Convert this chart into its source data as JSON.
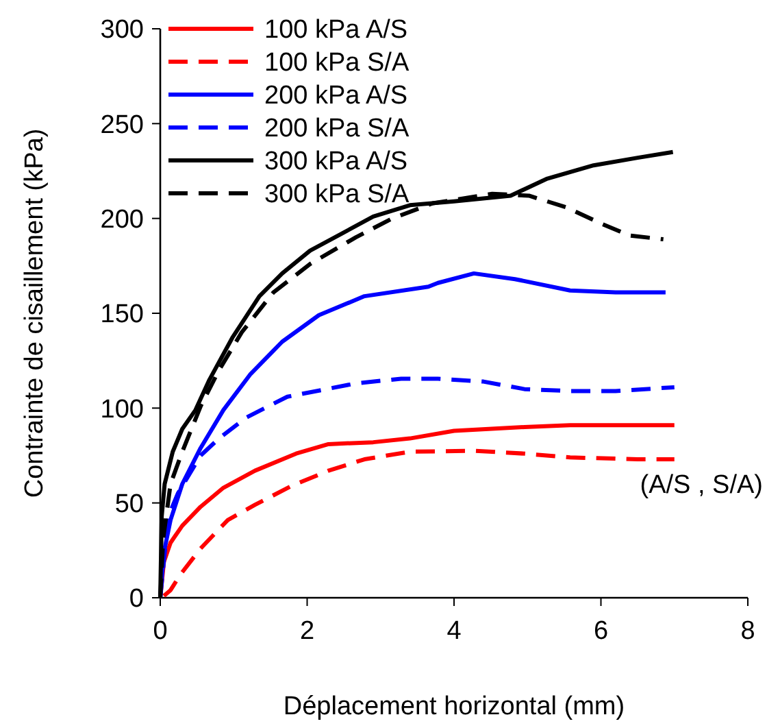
{
  "chart_data": {
    "type": "line",
    "xlabel": "Déplacement horizontal (mm)",
    "ylabel": "Contrainte de cisaillement (kPa)",
    "xlim": [
      0,
      8
    ],
    "xticks": [
      0,
      2,
      4,
      6,
      8
    ],
    "ylim": [
      0,
      300
    ],
    "yticks": [
      0,
      50,
      100,
      150,
      200,
      250,
      300
    ],
    "grid": false,
    "legend": "top left",
    "annotations": [
      "(A/S , S/A)"
    ],
    "series": [
      {
        "name": "100 kPa A/S",
        "color": "#ff0000",
        "line_style": "solid",
        "x": [
          0,
          0.05,
          0.14,
          0.3,
          0.55,
          0.86,
          1.29,
          1.85,
          2.29,
          2.9,
          3.4,
          4.0,
          4.96,
          5.58,
          6.2,
          7.0
        ],
        "values": [
          0,
          19,
          29,
          38,
          48,
          58,
          67,
          76,
          81,
          82,
          84,
          88,
          90,
          91,
          91,
          91
        ]
      },
      {
        "name": "100 kPa S/A",
        "color": "#ff0000",
        "line_style": "dashed",
        "x": [
          0.05,
          0.14,
          0.27,
          0.55,
          0.92,
          1.29,
          1.79,
          2.29,
          2.78,
          3.4,
          4.27,
          4.96,
          5.58,
          6.5,
          7.0
        ],
        "values": [
          1,
          4,
          12,
          26,
          41,
          49,
          59,
          67,
          73,
          77,
          77.5,
          76,
          74,
          73,
          73
        ]
      },
      {
        "name": "200 kPa A/S",
        "color": "#0000ff",
        "line_style": "solid",
        "x": [
          0,
          0.05,
          0.14,
          0.3,
          0.55,
          0.86,
          1.23,
          1.66,
          2.16,
          2.78,
          3.65,
          3.78,
          4.27,
          4.83,
          5.58,
          6.2,
          6.88
        ],
        "values": [
          0,
          24,
          41,
          60,
          79,
          99,
          118,
          135,
          149,
          159,
          164,
          166,
          171,
          168,
          162,
          161,
          161
        ]
      },
      {
        "name": "200 kPa S/A",
        "color": "#0000ff",
        "line_style": "dashed",
        "x": [
          0,
          0.11,
          0.24,
          0.55,
          0.8,
          1.17,
          1.73,
          2.66,
          3.28,
          3.78,
          4.4,
          4.96,
          5.58,
          6.2,
          7.0
        ],
        "values": [
          0,
          43,
          55,
          75,
          84,
          95,
          106,
          113,
          115.5,
          115.5,
          114,
          110,
          109,
          109,
          111
        ]
      },
      {
        "name": "300 kPa A/S",
        "color": "#000000",
        "line_style": "solid",
        "x": [
          0,
          0.02,
          0.06,
          0.17,
          0.3,
          0.48,
          0.67,
          0.98,
          1.35,
          1.66,
          2.04,
          2.47,
          2.9,
          3.4,
          4.0,
          4.77,
          5.27,
          5.9,
          6.5,
          6.98
        ],
        "values": [
          0,
          43,
          60,
          77,
          89,
          99,
          115,
          137,
          159,
          171,
          183,
          192,
          201,
          207,
          209,
          212,
          221,
          228,
          232,
          235
        ]
      },
      {
        "name": "300 kPa S/A",
        "color": "#000000",
        "line_style": "dashed",
        "x": [
          0,
          0.04,
          0.14,
          0.3,
          0.55,
          0.8,
          1.11,
          1.54,
          2.04,
          2.66,
          3.16,
          3.71,
          4.52,
          5.02,
          5.52,
          6.02,
          6.39,
          6.85
        ],
        "values": [
          0,
          31,
          60,
          77,
          101,
          120,
          140,
          161,
          176,
          190,
          200,
          208,
          213,
          212,
          206,
          197,
          191,
          189
        ]
      }
    ]
  }
}
